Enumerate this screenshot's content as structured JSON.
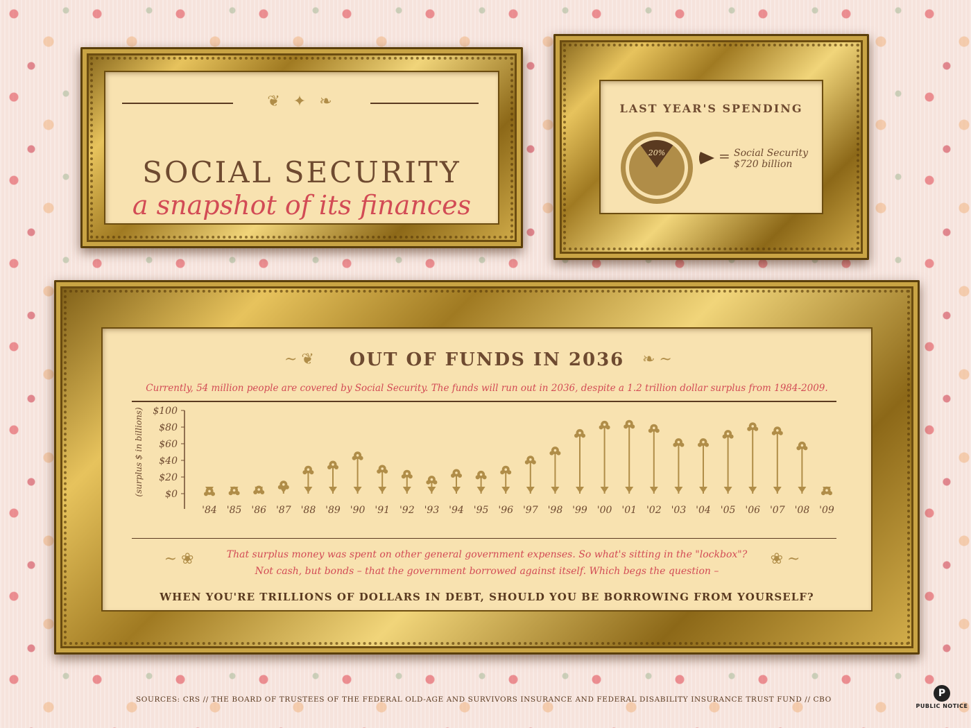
{
  "title_panel": {
    "title": "SOCIAL SECURITY",
    "subtitle": "a snapshot of its finances"
  },
  "spending_panel": {
    "heading": "LAST YEAR'S SPENDING",
    "legend_symbol": "=",
    "legend_line1": "Social Security",
    "legend_line2": "$720 billion"
  },
  "chart_panel": {
    "title": "OUT OF FUNDS IN 2036",
    "description": "Currently, 54 million people are covered by Social Security. The funds will run out in 2036, despite a 1.2 trillion dollar surplus from 1984-2009.",
    "note_line1": "That surplus money was spent on other general government expenses. So what's sitting in the \"lockbox\"?",
    "note_line2": "Not cash, but bonds – that the government borrowed against itself. Which begs the question –",
    "closing_question": "WHEN YOU'RE TRILLIONS OF DOLLARS IN DEBT, SHOULD YOU BE BORROWING FROM YOURSELF?"
  },
  "footer": {
    "sources": "SOURCES: CRS // THE BOARD OF TRUSTEES OF THE FEDERAL OLD-AGE AND SURVIVORS INSURANCE AND FEDERAL DISABILITY INSURANCE TRUST FUND // CBO",
    "publisher": "PUBLIC NOTICE",
    "publisher_mark": "P"
  },
  "colors": {
    "mat": "#f8e2b0",
    "gold": "#b08d48",
    "brown": "#6e4a30",
    "red": "#d24b55",
    "pie_dark": "#5a3a20"
  },
  "chart_data": [
    {
      "type": "pie",
      "title": "LAST YEAR'S SPENDING",
      "slices": [
        {
          "label": "Social Security",
          "value": 20,
          "data_label": "20%"
        },
        {
          "label": "",
          "value": 80
        }
      ]
    },
    {
      "type": "bar",
      "title": "OUT OF FUNDS IN 2036",
      "ylabel": "(surplus $ in billions)",
      "ylim": [
        0,
        100
      ],
      "yticks": [
        0,
        20,
        40,
        60,
        80,
        100
      ],
      "ytick_labels": [
        "$0",
        "$20",
        "$40",
        "$60",
        "$80",
        "$100"
      ],
      "categories": [
        "'84",
        "'85",
        "'86",
        "'87",
        "'88",
        "'89",
        "'90",
        "'91",
        "'92",
        "'93",
        "'94",
        "'95",
        "'96",
        "'97",
        "'98",
        "'99",
        "'00",
        "'01",
        "'02",
        "'03",
        "'04",
        "'05",
        "'06",
        "'07",
        "'08",
        "'09"
      ],
      "values": [
        3,
        4,
        5,
        11,
        29,
        35,
        46,
        30,
        24,
        17,
        25,
        23,
        29,
        41,
        52,
        73,
        83,
        84,
        79,
        62,
        62,
        72,
        81,
        76,
        58,
        4
      ]
    }
  ]
}
